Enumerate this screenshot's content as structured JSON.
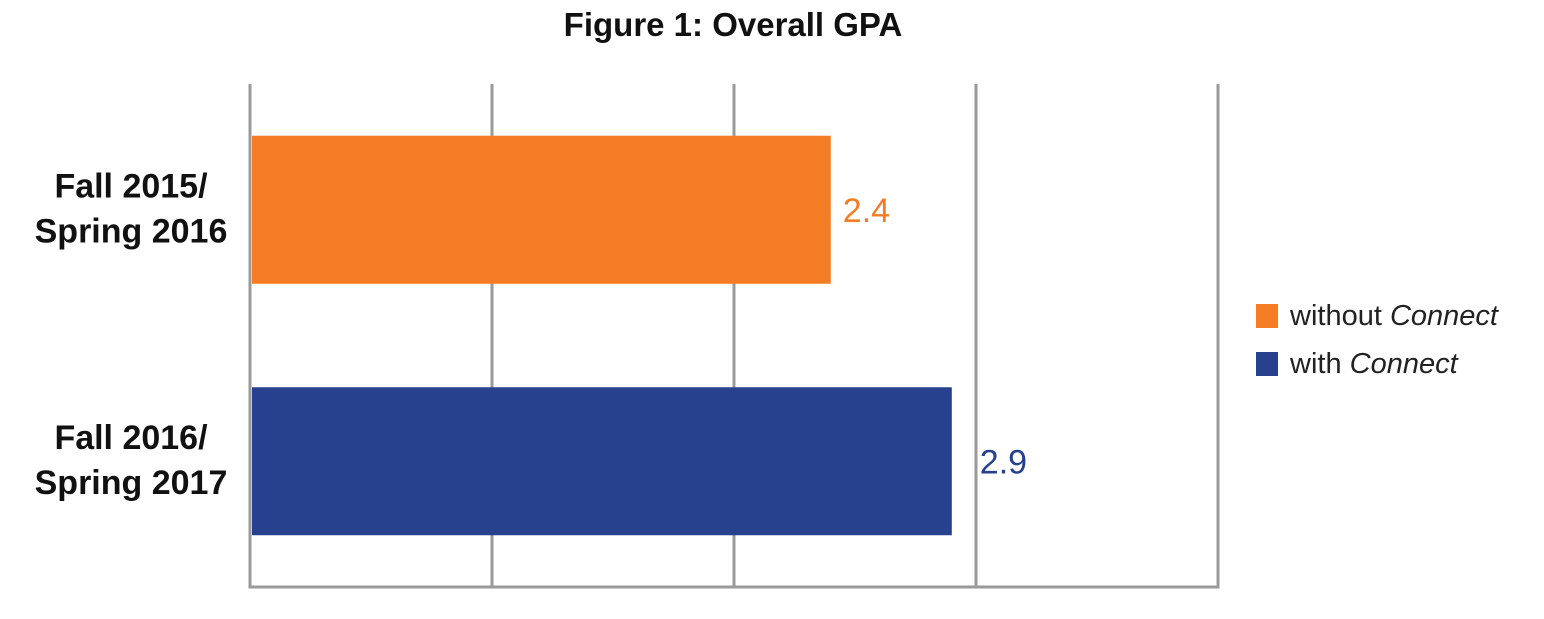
{
  "chart_data": {
    "type": "bar",
    "orientation": "horizontal",
    "title": "Figure 1: Overall GPA",
    "xlabel": "",
    "ylabel": "",
    "xlim": [
      0,
      4
    ],
    "grid": true,
    "legend_position": "right",
    "categories": [
      [
        "Fall 2015/",
        "Spring 2016"
      ],
      [
        "Fall 2016/",
        "Spring 2017"
      ]
    ],
    "values": [
      2.4,
      2.9
    ],
    "value_labels": [
      "2.4",
      "2.9"
    ],
    "bar_colors": [
      "#f47c25",
      "#27418e"
    ],
    "legend": [
      {
        "prefix": "without ",
        "italic": "Connect",
        "color": "#f47c25"
      },
      {
        "prefix": "with ",
        "italic": "Connect",
        "color": "#27418e"
      }
    ],
    "colors": {
      "grid": "#9a9a9a",
      "axis": "#9a9a9a"
    }
  }
}
